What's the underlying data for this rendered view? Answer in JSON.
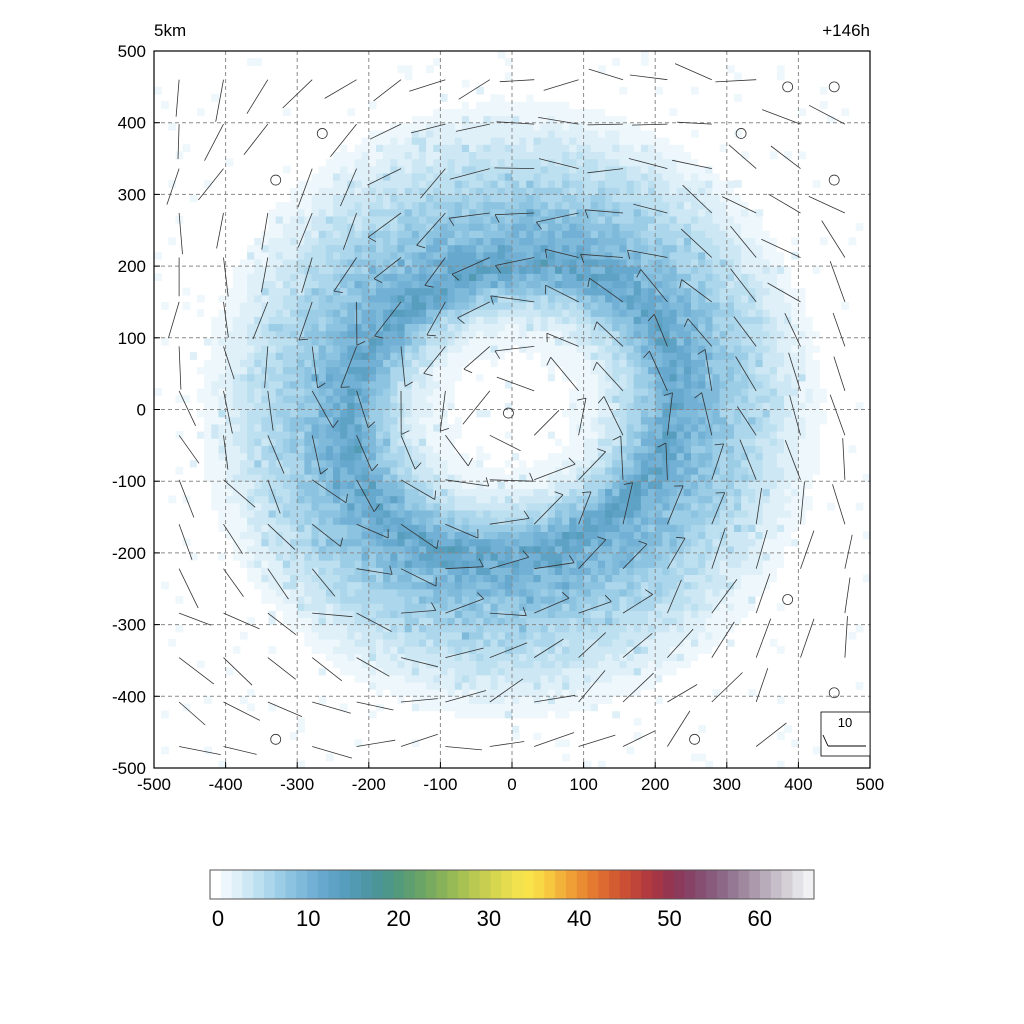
{
  "chart_data": {
    "type": "heatmap",
    "title_left": "5km",
    "title_right": "+146h",
    "xlabel": "",
    "ylabel": "",
    "xlim": [
      -500,
      500
    ],
    "ylim": [
      -500,
      500
    ],
    "x_ticks": [
      -500,
      -400,
      -300,
      -200,
      -100,
      0,
      100,
      200,
      300,
      400,
      500
    ],
    "y_ticks": [
      -500,
      -400,
      -300,
      -200,
      -100,
      0,
      100,
      200,
      300,
      400,
      500
    ],
    "x_tick_labels": [
      "-500",
      "-400",
      "-300",
      "-200",
      "-100",
      "0",
      "100",
      "200",
      "300",
      "400",
      "500"
    ],
    "y_tick_labels": [
      "-500",
      "-400",
      "-300",
      "-200",
      "-100",
      "0",
      "100",
      "200",
      "300",
      "400",
      "500"
    ],
    "grid": true,
    "field": {
      "description_kind": "annular field",
      "center": [
        0,
        0
      ],
      "peak_radius": 210,
      "peak_value": 13,
      "inner_value": 1,
      "outer_radius_zero": 460
    },
    "wind_reference": {
      "label": "10",
      "value": 10,
      "position": "bottom-right"
    },
    "wind_barbs": {
      "grid_spacing": 62,
      "calm_points": [
        [
          -265,
          385
        ],
        [
          -330,
          320
        ],
        [
          385,
          450
        ],
        [
          450,
          450
        ],
        [
          320,
          385
        ],
        [
          450,
          320
        ],
        [
          -5,
          -5
        ],
        [
          385,
          -265
        ],
        [
          450,
          -395
        ],
        [
          -330,
          -460
        ],
        [
          255,
          -460
        ]
      ]
    },
    "colorbar": {
      "min": 0,
      "max": 65,
      "tick_values": [
        0,
        10,
        20,
        30,
        40,
        50,
        60
      ],
      "tick_labels": [
        "0",
        "10",
        "20",
        "30",
        "40",
        "50",
        "60"
      ],
      "colors": [
        "#ffffff",
        "#eef7fb",
        "#dff0f8",
        "#cde8f4",
        "#bde0f0",
        "#acd6eb",
        "#9ccde6",
        "#8cc3e0",
        "#7fbadb",
        "#72b1d5",
        "#67a9ce",
        "#5ea2c5",
        "#579dbd",
        "#5299b2",
        "#4e96a6",
        "#4b9498",
        "#4c968a",
        "#53997c",
        "#5f9e70",
        "#6aa466",
        "#78ab5f",
        "#87b25a",
        "#97b956",
        "#a8c153",
        "#b8c851",
        "#c8cf50",
        "#d7d64f",
        "#e5dc4f",
        "#f1e24e",
        "#f8e34a",
        "#f9d845",
        "#f7c73f",
        "#f3b33a",
        "#ef9f35",
        "#ea8c32",
        "#e47a30",
        "#dd6a30",
        "#d45c31",
        "#ca4f35",
        "#bf4439",
        "#b23b3f",
        "#a43646",
        "#96354f",
        "#8c3a5b",
        "#874366",
        "#864e71",
        "#885a7c",
        "#8d6887",
        "#957893",
        "#a0899f",
        "#ac9aac",
        "#b9acba",
        "#c6bec8",
        "#d4d0d6",
        "#e3e2e6",
        "#f1f1f3"
      ]
    }
  }
}
